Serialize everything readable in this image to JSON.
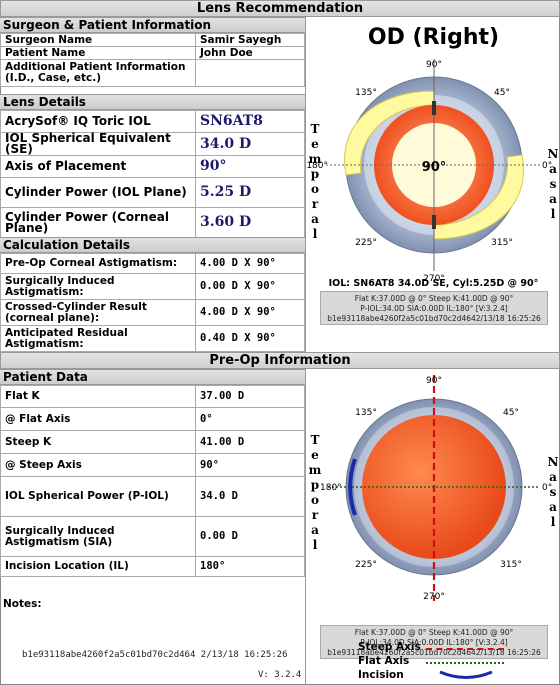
{
  "header": {
    "title": "Lens Recommendation"
  },
  "surgeon_section": {
    "title": "Surgeon & Patient Information",
    "rows": [
      {
        "label": "Surgeon Name",
        "value": "Samir Sayegh"
      },
      {
        "label": "Patient Name",
        "value": "John Doe"
      },
      {
        "label": "Additional Patient Information (I.D., Case, etc.)",
        "value": ""
      }
    ]
  },
  "lens_section": {
    "title": "Lens Details",
    "lens_label": "AcrySof® IQ Toric IOL",
    "lens_value": "SN6AT8",
    "rows": [
      {
        "label": "IOL Spherical Equivalent (SE)",
        "value": "34.0 D"
      },
      {
        "label": "Axis of Placement",
        "value": "90°"
      },
      {
        "label": "Cylinder Power (IOL Plane)",
        "value": "5.25 D"
      },
      {
        "label": "Cylinder Power (Corneal Plane)",
        "value": "3.60 D"
      }
    ]
  },
  "calc_section": {
    "title": "Calculation Details",
    "rows": [
      {
        "label": "Pre-Op Corneal Astigmatism:",
        "value": "4.00 D X 90°"
      },
      {
        "label": "Surgically Induced Astigmatism:",
        "value": "0.00 D X 90°"
      },
      {
        "label": "Crossed-Cylinder Result (corneal plane):",
        "value": "4.00 D X 90°"
      },
      {
        "label": "Anticipated Residual Astigmatism:",
        "value": "0.40 D X 90°"
      }
    ]
  },
  "diagram1": {
    "title": "OD (Right)",
    "center_label": "90°",
    "deg": {
      "top": "90°",
      "bottom": "270°",
      "left": "180°",
      "right": "0°",
      "tl": "135°",
      "tr": "45°",
      "bl": "225°",
      "br": "315°"
    },
    "left_word": "Temporal",
    "right_word": "Nasal",
    "caption": "IOL: SN6AT8 34.0D SE, Cyl:5.25D @ 90°",
    "info": [
      "Flat K:37.00D @ 0°  Steep K:41.00D @ 90°",
      "P-IOL:34.0D SIA:0.00D IL:180°   [V:3.2.4]",
      "b1e93118abe4260f2a5c01bd70c2d4642/13/18  16:25:26"
    ]
  },
  "preop_header": {
    "title": "Pre-Op Information"
  },
  "patient_section": {
    "title": "Patient Data",
    "rows": [
      {
        "label": "Flat K",
        "value": "37.00 D"
      },
      {
        "label": "@ Flat Axis",
        "value": "0°"
      },
      {
        "label": "Steep K",
        "value": "41.00 D"
      },
      {
        "label": "@ Steep Axis",
        "value": "90°"
      },
      {
        "label": "IOL Spherical Power (P-IOL)",
        "value": "34.0 D"
      },
      {
        "label": "Surgically Induced Astigmatism (SIA)",
        "value": "0.00 D"
      },
      {
        "label": "Incision Location (IL)",
        "value": "180°"
      }
    ],
    "notes_label": "Notes:"
  },
  "diagram2": {
    "deg": {
      "top": "90°",
      "bottom": "270°",
      "left": "180°",
      "right": "0°",
      "tl": "135°",
      "tr": "45°",
      "bl": "225°",
      "br": "315°"
    },
    "left_word": "Temporal",
    "right_word": "Nasal",
    "info": [
      "Flat K:37.00D @ 0°  Steep K:41.00D @ 90°",
      "P-IOL:34.0D SIA:0.00D IL:180°   [V:3.2.4]",
      "b1e93118abe4260f2a5c01bd70c2d4642/13/18  16:25:26"
    ]
  },
  "legend": {
    "steep": "Steep Axis",
    "flat": "Flat Axis",
    "incision": "Incision",
    "colors": {
      "steep": "#cc1010",
      "flat": "#1a6a1a",
      "incision": "#1a2aaa"
    }
  },
  "footer": {
    "hash": "b1e93118abe4260f2a5c01bd70c2d464 2/13/18 16:25:26",
    "version": "V: 3.2.4"
  }
}
